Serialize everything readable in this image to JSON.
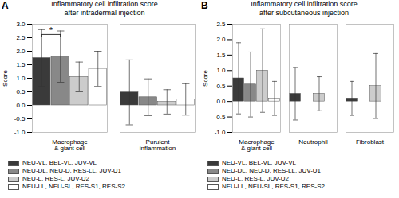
{
  "chart_data": [
    {
      "type": "bar",
      "title": "Inflammatory cell infiltration score\nafter intradermal injection",
      "ylabel": "Score",
      "categories": [
        "Macrophage & giant cell",
        "Purulent inflammation"
      ],
      "series": [
        {
          "name": "NEU-VL, BEL-VL, JUV-VL",
          "color": "#3a3a3a",
          "values": [
            1.75,
            0.48
          ],
          "errors": [
            1.05,
            1.2
          ]
        },
        {
          "name": "NEU-DL, NEU-D, RES-LL, JUV-U1",
          "color": "#888888",
          "values": [
            1.8,
            0.3
          ],
          "errors": [
            0.95,
            0.68
          ]
        },
        {
          "name": "NEU-L, RES-L, JUV-U2",
          "color": "#cccccc",
          "values": [
            1.05,
            0.13
          ],
          "errors": [
            0.55,
            0.45
          ]
        },
        {
          "name": "NEU-LL, NEU-SL, RES-S1, RES-S2",
          "color": "#ffffff",
          "values": [
            1.35,
            0.22
          ],
          "errors": [
            0.65,
            0.58
          ]
        }
      ],
      "ylim": [
        -1.0,
        3.0
      ],
      "yticks": [
        {
          "value": -1.0,
          "label": "-1.0"
        },
        -0.5,
        {
          "value": 0.0,
          "label": "0.0"
        },
        0.5,
        {
          "value": 1.0,
          "label": "1.0"
        },
        1.5,
        {
          "value": 2.0,
          "label": "2.0"
        },
        2.5,
        {
          "value": 3.0,
          "label": "3.0"
        }
      ],
      "legend": "bottom",
      "annotations": [
        {
          "text": "A"
        },
        {
          "text": "*",
          "category": "Macrophage & giant cell",
          "between": [
            "NEU-VL, BEL-VL, JUV-VL",
            "NEU-DL, NEU-D, RES-LL, JUV-U1"
          ],
          "y": 2.62
        }
      ]
    },
    {
      "type": "bar",
      "title": "Inflammatory cell infiltration score\nafter subcutaneous injection",
      "ylabel": "Score",
      "categories": [
        "Macrophage & giant cell",
        "Neutrophil",
        "Fibroblast"
      ],
      "series": [
        {
          "name": "NEU-VL, BEL-VL, JUV-VL",
          "color": "#3a3a3a",
          "values": [
            0.75,
            0.25,
            0.1
          ],
          "errors": [
            1.15,
            0.85,
            0.55
          ]
        },
        {
          "name": "NEU-DL, NEU-D, RES-LL, JUV-U1",
          "color": "#888888",
          "values": [
            0.55,
            0.0,
            0.0
          ],
          "errors": [
            1.05,
            0.0,
            0.0
          ]
        },
        {
          "name": "NEU-L, RES-L, JUV-U2",
          "color": "#cccccc",
          "values": [
            1.0,
            0.25,
            0.5
          ],
          "errors": [
            1.35,
            0.55,
            1.05
          ]
        },
        {
          "name": "NEU-LL, NEU-SL, RES-S1, RES-S2",
          "color": "#ffffff",
          "values": [
            0.1,
            0.0,
            0.0
          ],
          "errors": [
            0.55,
            0.0,
            0.0
          ]
        }
      ],
      "ylim": [
        -1.0,
        2.5
      ],
      "yticks": [
        {
          "value": -1.0,
          "label": "-1.0"
        },
        -0.5,
        {
          "value": 0.0,
          "label": "0.0"
        },
        0.5,
        {
          "value": 1.0,
          "label": "1.0"
        },
        1.5,
        {
          "value": 2.0,
          "label": "2.0"
        },
        2.5
      ],
      "legend": "bottom",
      "annotations": [
        {
          "text": "B"
        }
      ]
    }
  ]
}
